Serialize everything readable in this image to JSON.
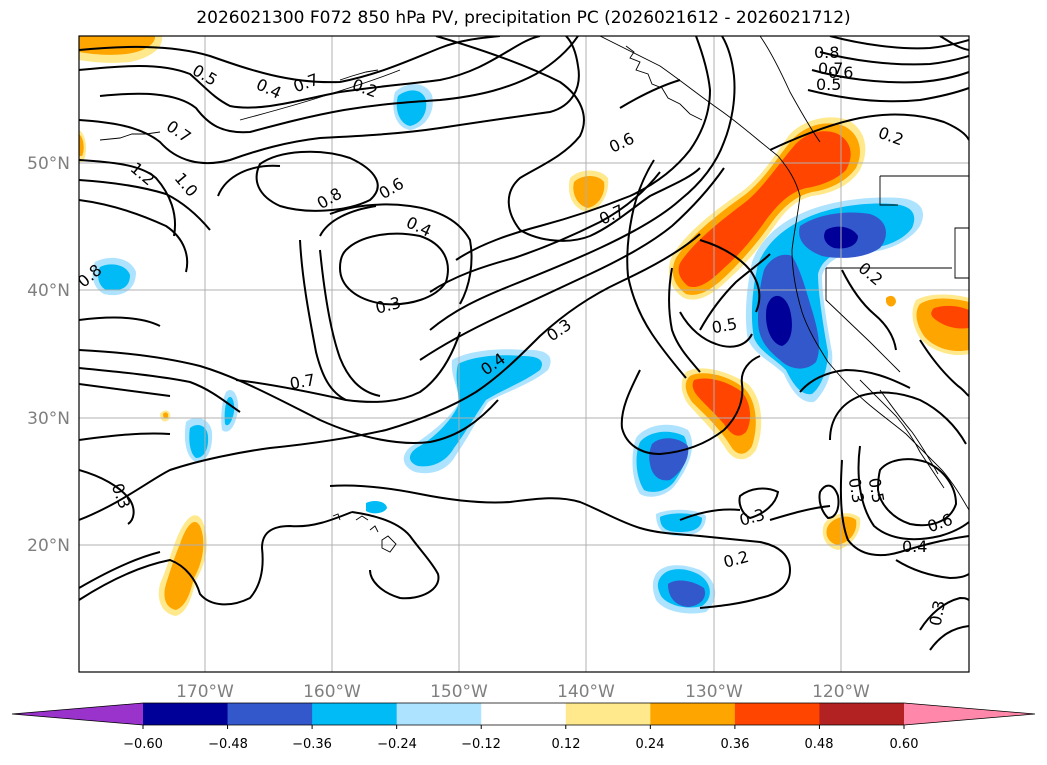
{
  "title": "2026021300 F072 850 hPa PV, precipitation PC (2026021612 - 2026021712)",
  "map": {
    "lon_ticks": [
      "170°W",
      "160°W",
      "150°W",
      "140°W",
      "130°W",
      "120°W"
    ],
    "lat_ticks": [
      "50°N",
      "40°N",
      "30°N",
      "20°N"
    ],
    "contour_labels": [
      "0.5",
      "0.4",
      "0.2",
      "0.7",
      "1.2",
      "1.0",
      "0.7",
      "0.8",
      "0.6",
      "0.4",
      "0.3",
      "0.7",
      "0.4",
      "0.3",
      "0.6",
      "0.7",
      "0.5",
      "0.3",
      "0.2",
      "0.8",
      "0.7",
      "0.6",
      "0.5",
      "0.2",
      "0.2",
      "0.3",
      "0.5",
      "0.6",
      "0.4",
      "0.3",
      "0.3",
      "0.8"
    ]
  },
  "colorbar": {
    "colors": [
      "#9933cc",
      "#000099",
      "#3358cc",
      "#00bbf5",
      "#aee3ff",
      "#ffffff",
      "#ffe98c",
      "#ffa500",
      "#ff4500",
      "#b22222",
      "#ff88aa"
    ],
    "tick_labels": [
      "−0.60",
      "−0.48",
      "−0.36",
      "−0.24",
      "−0.12",
      "0.12",
      "0.24",
      "0.36",
      "0.48",
      "0.60"
    ]
  }
}
